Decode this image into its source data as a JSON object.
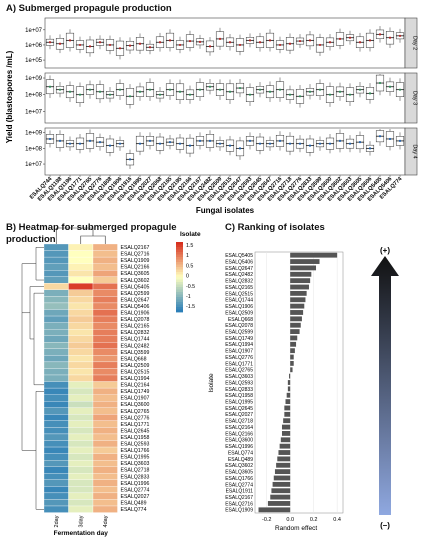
{
  "panel_a": {
    "title": "A) Submerged propagule production",
    "ylabel": "Yield (blastospores /mL)",
    "xlabel": "Fungal isolates",
    "facets": [
      "Day 2",
      "Day 3",
      "Day 4"
    ]
  },
  "panel_b": {
    "title_line1": "B) Heatmap for submerged propagule",
    "title_line2": "production",
    "xlabel": "Fermentation day",
    "legend_title": "Isolate"
  },
  "panel_c": {
    "title": "C) Ranking of isolates",
    "ylabel": "Isolate",
    "xlabel": "Random effect",
    "arrow_top": "(+)",
    "arrow_bottom": "(–)"
  },
  "colors": {
    "day2": "#b22222",
    "day3": "#2e8b57",
    "day4": "#1f5fa8",
    "heat_low": "#2c7fb8",
    "heat_mid": "#ffffbf",
    "heat_high": "#d7301f",
    "bar": "#555555",
    "arrow_top": "#111111",
    "arrow_bottom": "#8fa8e0"
  },
  "chart_data": [
    {
      "type": "box",
      "panel": "A",
      "x_isolates": [
        "ESALQ744",
        "ESALQ1198",
        "ESALQ1196",
        "ESALQ1771",
        "ESALQ2765",
        "ESALQ2776",
        "ESALQ1808",
        "ESALQ1906",
        "ESALQ1916",
        "ESALQ1995",
        "ESALQ2027",
        "ESALQ2068",
        "ESALQ2165",
        "ESALQ2195",
        "ESALQ2166",
        "ESALQ2167",
        "ESALQ2482",
        "ESALQ2509",
        "ESALQ2515",
        "ESALQ2547",
        "ESALQ2593",
        "ESALQ2645",
        "ESALQ2647",
        "ESALQ2716",
        "ESALQ2718",
        "ESALQ2776",
        "ESALQ2833",
        "ESALQ3599",
        "ESALQ3600",
        "ESALQ3602",
        "ESALQ3603",
        "ESALQ3605",
        "ESALQ3606",
        "ESALQ5405",
        "ESALQ5406",
        "ESALQ774"
      ],
      "y_scale": "log10",
      "facets": [
        {
          "name": "Day 2",
          "yticks": [
            "1e+05",
            "1e+06",
            "1e+07"
          ],
          "ylim": [
            30000,
            60000000
          ],
          "medians": [
            1500000.0,
            1200000.0,
            2000000.0,
            1000000.0,
            800000.0,
            1500000.0,
            1000000.0,
            600000.0,
            900000.0,
            1200000.0,
            700000.0,
            1500000.0,
            2000000.0,
            1000000.0,
            1800000.0,
            1600000.0,
            800000.0,
            2500000.0,
            1500000.0,
            1000000.0,
            2000000.0,
            1500000.0,
            2000000.0,
            1000000.0,
            1200000.0,
            1800000.0,
            2000000.0,
            1000000.0,
            1500000.0,
            2500000.0,
            3000000.0,
            1500000.0,
            2000000.0,
            5000000.0,
            3000000.0,
            4000000.0
          ]
        },
        {
          "name": "Day 3",
          "yticks": [
            "1e+07",
            "1e+08",
            "1e+09"
          ],
          "ylim": [
            2000000,
            2000000000
          ],
          "medians": [
            300000000.0,
            200000000.0,
            150000000.0,
            100000000.0,
            200000000.0,
            150000000.0,
            100000000.0,
            200000000.0,
            80000000.0,
            150000000.0,
            200000000.0,
            100000000.0,
            200000000.0,
            150000000.0,
            100000000.0,
            200000000.0,
            300000000.0,
            200000000.0,
            150000000.0,
            250000000.0,
            100000000.0,
            200000000.0,
            150000000.0,
            200000000.0,
            100000000.0,
            80000000.0,
            150000000.0,
            200000000.0,
            100000000.0,
            150000000.0,
            100000000.0,
            200000000.0,
            120000000.0,
            500000000.0,
            300000000.0,
            200000000.0
          ]
        },
        {
          "name": "Day 4",
          "yticks": [
            "1e+07",
            "1e+08",
            "1e+09"
          ],
          "ylim": [
            2000000,
            2000000000
          ],
          "medians": [
            400000000.0,
            300000000.0,
            200000000.0,
            200000000.0,
            300000000.0,
            250000000.0,
            150000000.0,
            200000000.0,
            20000000.0,
            200000000.0,
            300000000.0,
            200000000.0,
            250000000.0,
            200000000.0,
            150000000.0,
            300000000.0,
            300000000.0,
            200000000.0,
            150000000.0,
            100000000.0,
            300000000.0,
            200000000.0,
            200000000.0,
            300000000.0,
            200000000.0,
            200000000.0,
            150000000.0,
            200000000.0,
            200000000.0,
            300000000.0,
            200000000.0,
            250000000.0,
            100000000.0,
            600000000.0,
            400000000.0,
            300000000.0
          ]
        }
      ]
    },
    {
      "type": "heatmap",
      "panel": "B",
      "columns": [
        "2day",
        "3day",
        "4day"
      ],
      "legend_ticks": [
        "1.5",
        "1",
        "0.5",
        "0",
        "-0.5",
        "-1",
        "-1.5"
      ],
      "rows": [
        "ESALQ2167",
        "ESALQ2716",
        "ESALQ1909",
        "ESALQ2166",
        "ESALQ3605",
        "ESALQ3602",
        "ESALQ5405",
        "ESALQ2599",
        "ESALQ2647",
        "ESALQ5406",
        "ESALQ1906",
        "ESALQ2078",
        "ESALQ2165",
        "ESALQ2832",
        "ESALQ1744",
        "ESALQ2482",
        "ESALQ3599",
        "ESALQ668",
        "ESALQ2509",
        "ESALQ2515",
        "ESALQ1994",
        "ESALQ2164",
        "ESALQ1749",
        "ESALQ1907",
        "ESALQ3600",
        "ESALQ2765",
        "ESALQ2776",
        "ESALQ1771",
        "ESALQ2645",
        "ESALQ1958",
        "ESALQ2593",
        "ESALQ1766",
        "ESALQ1995",
        "ESALQ3603",
        "ESALQ2718",
        "ESALQ2833",
        "ESALQ1996",
        "ESALQ2774",
        "ESALQ2027",
        "ESALQ489",
        "ESALQ774"
      ],
      "values": [
        [
          -1.3,
          0.1,
          0.6
        ],
        [
          -1.3,
          0.0,
          0.5
        ],
        [
          -1.3,
          0.0,
          0.6
        ],
        [
          -1.2,
          0.1,
          0.5
        ],
        [
          -1.3,
          0.2,
          0.7
        ],
        [
          -1.2,
          0.0,
          0.4
        ],
        [
          0.3,
          1.5,
          1.1
        ],
        [
          -1.0,
          0.4,
          0.9
        ],
        [
          -0.9,
          0.3,
          1.0
        ],
        [
          -0.8,
          0.2,
          0.9
        ],
        [
          -1.1,
          0.3,
          1.1
        ],
        [
          -1.2,
          0.4,
          1.0
        ],
        [
          -1.0,
          0.3,
          0.9
        ],
        [
          -1.0,
          0.2,
          1.0
        ],
        [
          -1.1,
          0.3,
          1.0
        ],
        [
          -0.9,
          0.4,
          1.1
        ],
        [
          -1.0,
          0.3,
          0.9
        ],
        [
          -1.1,
          0.2,
          0.8
        ],
        [
          -0.9,
          0.3,
          1.0
        ],
        [
          -1.0,
          0.2,
          0.9
        ],
        [
          -1.0,
          0.3,
          1.0
        ],
        [
          -1.4,
          -0.2,
          0.4
        ],
        [
          -1.5,
          -0.3,
          0.6
        ],
        [
          -1.4,
          -0.2,
          0.5
        ],
        [
          -1.5,
          -0.4,
          0.6
        ],
        [
          -1.3,
          -0.2,
          0.5
        ],
        [
          -1.5,
          -0.3,
          0.7
        ],
        [
          -1.4,
          -0.2,
          0.5
        ],
        [
          -1.4,
          -0.3,
          0.6
        ],
        [
          -1.3,
          -0.2,
          0.5
        ],
        [
          -1.4,
          -0.3,
          0.6
        ],
        [
          -1.5,
          -0.2,
          0.4
        ],
        [
          -1.4,
          -0.3,
          0.6
        ],
        [
          -1.3,
          -0.2,
          0.5
        ],
        [
          -1.5,
          -0.3,
          0.6
        ],
        [
          -1.4,
          -0.2,
          0.5
        ],
        [
          -1.3,
          -0.3,
          0.6
        ],
        [
          -1.5,
          -0.3,
          0.5
        ],
        [
          -1.4,
          -0.2,
          0.6
        ],
        [
          -1.3,
          -0.3,
          0.5
        ],
        [
          -1.4,
          -0.2,
          0.6
        ]
      ]
    },
    {
      "type": "bar",
      "panel": "C",
      "orientation": "horizontal",
      "xlim": [
        -0.3,
        0.45
      ],
      "xticks": [
        "-0.2",
        "0.0",
        "0.2",
        "0.4"
      ],
      "categories": [
        "ESALQ5405",
        "ESALQ5406",
        "ESALQ2647",
        "ESALQ2482",
        "ESALQ2832",
        "ESALQ2165",
        "ESALQ2515",
        "ESALQ1744",
        "ESALQ1906",
        "ESALQ2509",
        "ESALQ668",
        "ESALQ2078",
        "ESALQ2599",
        "ESALQ1749",
        "ESALQ1994",
        "ESALQ1907",
        "ESALQ2776",
        "ESALQ1771",
        "ESALQ2765",
        "ESALQ3603",
        "ESALQ2593",
        "ESALQ2833",
        "ESALQ1958",
        "ESALQ1995",
        "ESALQ2645",
        "ESALQ2027",
        "ESALQ2718",
        "ESALQ2164",
        "ESALQ2166",
        "ESALQ3600",
        "ESALQ1996",
        "ESALQ774",
        "ESALQ489",
        "ESALQ3602",
        "ESALQ3605",
        "ESALQ1766",
        "ESALQ2774",
        "ESALQ1911",
        "ESALQ2167",
        "ESALQ2716",
        "ESALQ1909"
      ],
      "values": [
        0.4,
        0.25,
        0.22,
        0.18,
        0.17,
        0.16,
        0.14,
        0.13,
        0.12,
        0.11,
        0.1,
        0.09,
        0.08,
        0.06,
        0.05,
        0.04,
        0.03,
        0.03,
        0.02,
        -0.01,
        -0.02,
        -0.02,
        -0.03,
        -0.04,
        -0.05,
        -0.05,
        -0.06,
        -0.07,
        -0.07,
        -0.08,
        -0.09,
        -0.1,
        -0.11,
        -0.12,
        -0.13,
        -0.14,
        -0.15,
        -0.16,
        -0.17,
        -0.19,
        -0.27
      ]
    }
  ]
}
